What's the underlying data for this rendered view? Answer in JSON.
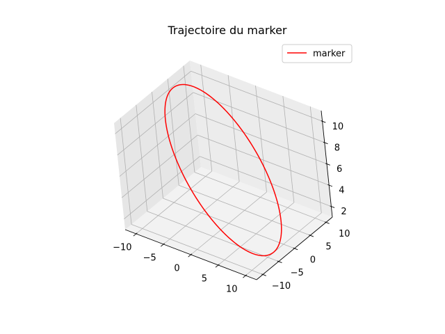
{
  "chart_data": {
    "type": "line",
    "projection": "3d",
    "title": "Trajectoire du marker",
    "xlabel": "",
    "ylabel": "",
    "zlabel": "",
    "xlim": [
      -12,
      12
    ],
    "ylim": [
      -12,
      12
    ],
    "zlim": [
      1,
      11
    ],
    "x_ticks": [
      -10,
      -5,
      0,
      5,
      10
    ],
    "y_ticks": [
      -10,
      -5,
      0,
      5,
      10
    ],
    "z_ticks": [
      2,
      4,
      6,
      8,
      10
    ],
    "x_tick_labels": [
      "−10",
      "−5",
      "0",
      "5",
      "10"
    ],
    "y_tick_labels": [
      "−10",
      "−5",
      "0",
      "5",
      "10"
    ],
    "z_tick_labels": [
      "2",
      "4",
      "6",
      "8",
      "10"
    ],
    "grid": true,
    "legend": {
      "position": "top-right",
      "entries": [
        "marker"
      ]
    },
    "series": [
      {
        "name": "marker",
        "color": "#ff0000",
        "shape": "circle",
        "center": [
          0,
          0,
          6
        ],
        "radius": 10,
        "normal": [
          0.62,
          0.05,
          0.78
        ]
      }
    ]
  }
}
